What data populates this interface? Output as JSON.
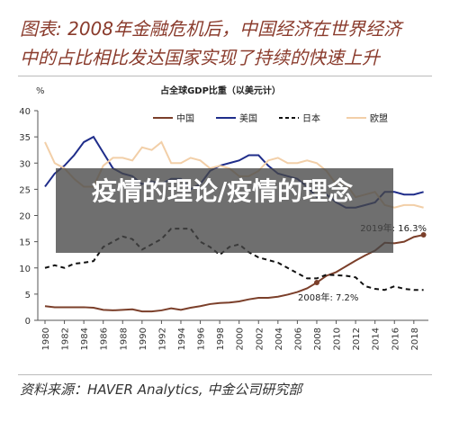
{
  "header": {
    "title_lines": [
      "图表: 2008年金融危机后，中国经济在世界经济",
      "中的占比相比发达国家实现了持续的快速上升"
    ]
  },
  "chart_data": {
    "type": "line",
    "title": "占全球GDP比重（以美元计）",
    "y_label": "%",
    "x": [
      1980,
      1981,
      1982,
      1983,
      1984,
      1985,
      1986,
      1987,
      1988,
      1989,
      1990,
      1991,
      1992,
      1993,
      1994,
      1995,
      1996,
      1997,
      1998,
      1999,
      2000,
      2001,
      2002,
      2003,
      2004,
      2005,
      2006,
      2007,
      2008,
      2009,
      2010,
      2011,
      2012,
      2013,
      2014,
      2015,
      2016,
      2017,
      2018,
      2019
    ],
    "series": [
      {
        "name": "中国",
        "color": "#7b3f2a",
        "dash": false,
        "values": [
          2.7,
          2.5,
          2.5,
          2.5,
          2.5,
          2.4,
          2.0,
          1.9,
          2.0,
          2.1,
          1.7,
          1.7,
          1.9,
          2.3,
          2.0,
          2.4,
          2.7,
          3.1,
          3.3,
          3.4,
          3.6,
          4.0,
          4.3,
          4.3,
          4.5,
          4.9,
          5.4,
          6.1,
          7.2,
          8.5,
          9.2,
          10.3,
          11.4,
          12.4,
          13.3,
          14.8,
          14.7,
          15.0,
          15.9,
          16.3
        ]
      },
      {
        "name": "美国",
        "color": "#1f2d8a",
        "dash": false,
        "values": [
          25.5,
          28,
          29.5,
          31.5,
          34,
          35,
          32,
          29,
          28,
          27.5,
          26,
          26.5,
          26,
          27,
          27,
          25,
          26,
          28.5,
          29.5,
          30,
          30.5,
          31.5,
          31.5,
          29.5,
          28,
          27.5,
          27,
          25.5,
          23.5,
          24,
          22.5,
          21.5,
          21.5,
          22,
          22.5,
          24.5,
          24.5,
          24,
          24,
          24.5
        ]
      },
      {
        "name": "日本",
        "color": "#111111",
        "dash": true,
        "values": [
          10,
          10.5,
          10,
          10.8,
          11,
          11.3,
          14,
          15,
          16,
          15.5,
          13.5,
          14.5,
          15.5,
          17.5,
          17.5,
          17.5,
          15,
          14,
          12.5,
          14,
          14.5,
          13,
          12,
          11.5,
          11,
          10,
          9,
          8,
          8,
          8.7,
          8.6,
          8.5,
          8.2,
          6.5,
          6,
          5.8,
          6.5,
          6,
          5.8,
          5.8
        ]
      },
      {
        "name": "欧盟",
        "color": "#f2cfa8",
        "dash": false,
        "values": [
          34,
          30,
          29,
          27,
          25.5,
          25.5,
          29.5,
          31,
          31,
          30.5,
          33,
          32.5,
          34,
          30,
          30,
          31,
          30.5,
          29,
          29.5,
          29,
          27.5,
          27.5,
          28.5,
          30.5,
          31,
          30,
          30,
          30.5,
          30,
          28.5,
          26,
          26,
          23.5,
          24,
          24.5,
          22,
          21.5,
          22,
          22,
          21.5
        ]
      }
    ],
    "annotations": [
      "2019年: 16.3%",
      "2008年: 7.2%"
    ],
    "xlim": [
      1979.5,
      2019.5
    ],
    "ylim": [
      0,
      40
    ],
    "xticks": [
      1980,
      1982,
      1984,
      1986,
      1988,
      1990,
      1992,
      1994,
      1996,
      1998,
      2000,
      2002,
      2004,
      2006,
      2008,
      2010,
      2012,
      2014,
      2016,
      2018
    ],
    "yticks": [
      0,
      5,
      10,
      15,
      20,
      25,
      30,
      35,
      40
    ]
  },
  "overlay_text": "疫情的理论/疫情的理念",
  "source": "资料来源：HAVER Analytics, 中金公司研究部"
}
